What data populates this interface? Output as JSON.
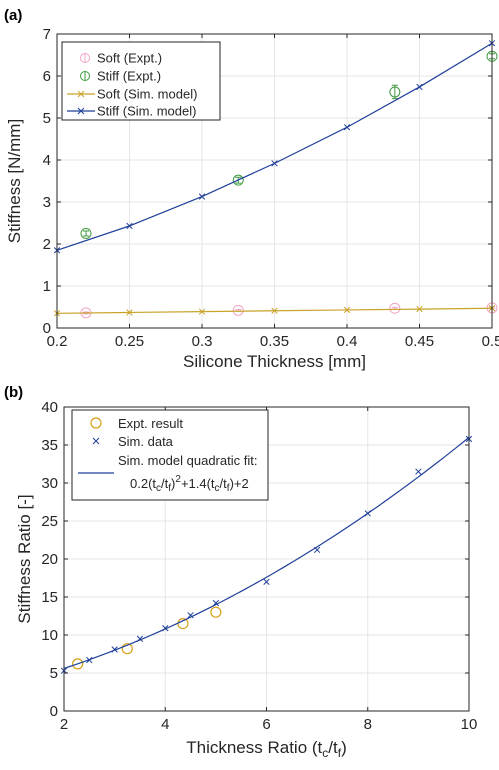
{
  "colors": {
    "soft_expt": "#f2a3c8",
    "stiff_expt": "#3f9a3f",
    "soft_sim": "#c9a227",
    "stiff_sim": "#1f3f99",
    "ratio_expt": "#d4a017",
    "ratio_sim": "#1f3f99",
    "grid": "#e6e6e6",
    "axis": "#262626"
  },
  "chart_data": [
    {
      "panel_label": "(a)",
      "type": "line",
      "xlabel": "Silicone Thickness [mm]",
      "ylabel": "Stiffness [N/mm]",
      "xlim": [
        0.2,
        0.5
      ],
      "ylim": [
        0,
        7
      ],
      "xticks": [
        0.2,
        0.25,
        0.3,
        0.35,
        0.4,
        0.45,
        0.5
      ],
      "xtick_labels": [
        "0.2",
        "0.25",
        "0.3",
        "0.35",
        "0.4",
        "0.45",
        "0.5"
      ],
      "yticks": [
        0,
        1,
        2,
        3,
        4,
        5,
        6,
        7
      ],
      "ytick_labels": [
        "0",
        "1",
        "2",
        "3",
        "4",
        "5",
        "6",
        "7"
      ],
      "grid": true,
      "legend_position": "top-left",
      "legend": [
        "Soft (Expt.)",
        "Stiff (Expt.)",
        "Soft (Sim. model)",
        "Stiff (Sim. model)"
      ],
      "series": [
        {
          "name": "Soft (Expt.)",
          "kind": "errorbar",
          "marker": "circle",
          "color_key": "soft_expt",
          "x": [
            0.22,
            0.325,
            0.433,
            0.5
          ],
          "y": [
            0.36,
            0.42,
            0.47,
            0.48
          ],
          "err": [
            0.02,
            0.02,
            0.02,
            0.02
          ]
        },
        {
          "name": "Stiff (Expt.)",
          "kind": "errorbar",
          "marker": "circle",
          "color_key": "stiff_expt",
          "x": [
            0.22,
            0.325,
            0.433,
            0.5
          ],
          "y": [
            2.25,
            3.52,
            5.62,
            6.47
          ],
          "err": [
            0.06,
            0.07,
            0.16,
            0.06
          ]
        },
        {
          "name": "Soft (Sim. model)",
          "kind": "line",
          "marker": "x",
          "color_key": "soft_sim",
          "x": [
            0.2,
            0.25,
            0.3,
            0.35,
            0.4,
            0.45,
            0.5
          ],
          "y": [
            0.35,
            0.37,
            0.39,
            0.41,
            0.43,
            0.45,
            0.47
          ]
        },
        {
          "name": "Stiff (Sim. model)",
          "kind": "line",
          "marker": "x",
          "color_key": "stiff_sim",
          "x": [
            0.2,
            0.25,
            0.3,
            0.35,
            0.4,
            0.45,
            0.5
          ],
          "y": [
            1.85,
            2.43,
            3.13,
            3.92,
            4.78,
            5.74,
            6.78
          ]
        }
      ]
    },
    {
      "panel_label": "(b)",
      "type": "scatter",
      "xlabel_main": "Thickness Ratio (t",
      "xlabel_sub1": "c",
      "xlabel_mid": "/t",
      "xlabel_sub2": "f",
      "xlabel_end": ")",
      "ylabel": "Stiffness Ratio [-]",
      "xlim": [
        2,
        10
      ],
      "ylim": [
        0,
        40
      ],
      "xticks": [
        2,
        4,
        6,
        8,
        10
      ],
      "xtick_labels": [
        "2",
        "4",
        "6",
        "8",
        "10"
      ],
      "yticks": [
        0,
        5,
        10,
        15,
        20,
        25,
        30,
        35,
        40
      ],
      "ytick_labels": [
        "0",
        "5",
        "10",
        "15",
        "20",
        "25",
        "30",
        "35",
        "40"
      ],
      "grid": true,
      "legend_position": "top-left",
      "legend": [
        "Expt. result",
        "Sim. data",
        "Sim. model quadratic fit:"
      ],
      "fit_equation": {
        "a": "0.2(t",
        "s1": "c",
        "b": "/t",
        "s2": "f",
        "c": ")",
        "sup": "2",
        "d": "+1.4(t",
        "s3": "c",
        "e": "/t",
        "s4": "f",
        "f": ")+2"
      },
      "series": [
        {
          "name": "Expt. result",
          "kind": "scatter",
          "marker": "circle",
          "color_key": "ratio_expt",
          "x": [
            2.27,
            3.25,
            4.35,
            5.0
          ],
          "y": [
            6.2,
            8.2,
            11.5,
            13.0
          ]
        },
        {
          "name": "Sim. data",
          "kind": "scatter",
          "marker": "x",
          "color_key": "ratio_sim",
          "x": [
            2,
            2.5,
            3,
            3.5,
            4,
            4.5,
            5,
            6,
            7,
            8,
            9,
            10
          ],
          "y": [
            5.3,
            6.7,
            8.1,
            9.5,
            10.9,
            12.6,
            14.2,
            17.0,
            21.2,
            26.0,
            31.5,
            35.8
          ]
        },
        {
          "name": "Sim. model quadratic fit:",
          "kind": "fit",
          "color_key": "ratio_sim",
          "coeffs": [
            0.2,
            1.4,
            2
          ]
        }
      ]
    }
  ]
}
